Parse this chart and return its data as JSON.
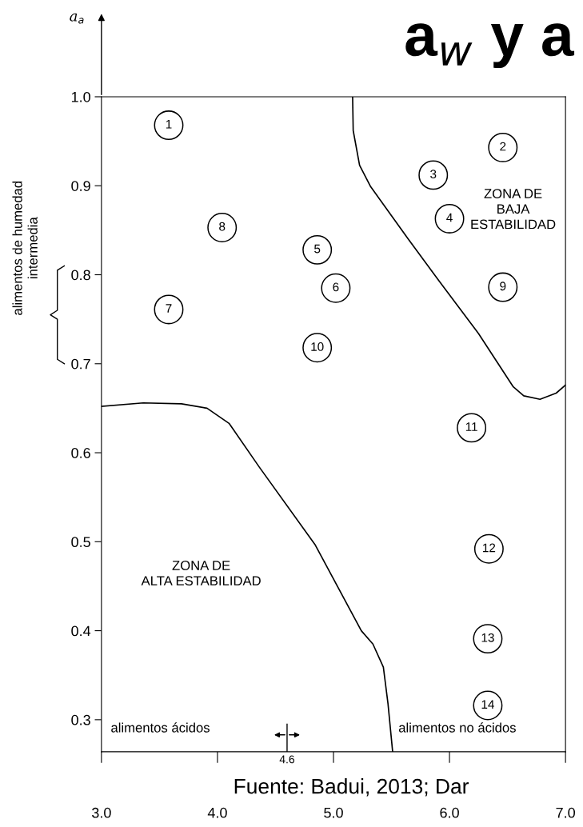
{
  "chart_data": {
    "type": "scatter",
    "title": "a$_{w}$ y a",
    "ylabel": "a$_{a}$",
    "x": [
      3.58,
      6.46,
      5.86,
      6.0,
      4.86,
      5.02,
      3.58,
      4.04,
      6.46,
      4.86,
      6.19,
      6.34,
      6.33,
      6.33
    ],
    "values": [
      0.968,
      0.943,
      0.912,
      0.863,
      0.828,
      0.785,
      0.761,
      0.853,
      0.786,
      0.718,
      0.628,
      0.492,
      0.391,
      0.316
    ],
    "color": "#000000",
    "marker": "circle",
    "series": [
      {
        "type": "line",
        "marker": "none",
        "color": "#000000",
        "x": [
          5.165,
          5.17,
          5.225,
          5.32,
          5.64,
          5.91,
          6.25,
          6.55,
          6.64,
          6.78,
          6.92,
          7.0
        ],
        "values": [
          1.0,
          0.962,
          0.923,
          0.899,
          0.841,
          0.793,
          0.734,
          0.674,
          0.664,
          0.66,
          0.667,
          0.676
        ]
      },
      {
        "type": "line",
        "marker": "none",
        "color": "#000000",
        "x": [
          3.0,
          3.36,
          3.69,
          3.91,
          4.1,
          4.36,
          4.84,
          5.24,
          5.34,
          5.43,
          5.47,
          5.51
        ],
        "values": [
          0.652,
          0.656,
          0.655,
          0.65,
          0.633,
          0.584,
          0.497,
          0.4,
          0.385,
          0.359,
          0.318,
          0.264
        ]
      }
    ],
    "annotations": [
      {
        "text": "1",
        "x": 3.58,
        "y": 0.968
      },
      {
        "text": "2",
        "x": 6.46,
        "y": 0.943
      },
      {
        "text": "3",
        "x": 5.86,
        "y": 0.912
      },
      {
        "text": "4",
        "x": 6.0,
        "y": 0.863
      },
      {
        "text": "5",
        "x": 4.86,
        "y": 0.828
      },
      {
        "text": "6",
        "x": 5.02,
        "y": 0.785
      },
      {
        "text": "7",
        "x": 3.58,
        "y": 0.761
      },
      {
        "text": "8",
        "x": 4.04,
        "y": 0.853
      },
      {
        "text": "9",
        "x": 6.46,
        "y": 0.786
      },
      {
        "text": "10",
        "x": 4.86,
        "y": 0.718
      },
      {
        "text": "11",
        "x": 6.19,
        "y": 0.628
      },
      {
        "text": "12",
        "x": 6.34,
        "y": 0.492
      },
      {
        "text": "13",
        "x": 6.33,
        "y": 0.391
      },
      {
        "text": "14",
        "x": 6.33,
        "y": 0.316
      },
      "ZONA DE\nBAJA\nESTABILIDAD",
      "ZONA DE\nALTA ESTABILIDAD",
      "alimentos ácidos",
      "alimentos no ácidos",
      "alimentos de humedad\nintermedia",
      "Fuente: Badui, 2013; Dar"
    ],
    "ref_lines": [
      {
        "axis": "x",
        "value": 4.6,
        "label": "4.6"
      }
    ],
    "xlim": [
      3.0,
      7.0
    ],
    "xticks": [
      {
        "value": 3.0,
        "label": "3.0"
      },
      {
        "value": 4.0,
        "label": "4.0"
      },
      {
        "value": 5.0,
        "label": "5.0"
      },
      {
        "value": 6.0,
        "label": "6.0"
      },
      {
        "value": 7.0,
        "label": "7.0"
      }
    ],
    "ylim": [
      0.264,
      1.0
    ],
    "yticks": [
      {
        "value": 0.3,
        "label": "0.3"
      },
      {
        "value": 0.4,
        "label": "0.4"
      },
      {
        "value": 0.5,
        "label": "0.5"
      },
      {
        "value": 0.6,
        "label": "0.6"
      },
      {
        "value": 0.7,
        "label": "0.7"
      },
      {
        "value": 0.8,
        "label": "0.8"
      },
      {
        "value": 0.9,
        "label": "0.9"
      },
      {
        "value": 1.0,
        "label": "1.0"
      }
    ],
    "grid": false,
    "legend": false
  }
}
